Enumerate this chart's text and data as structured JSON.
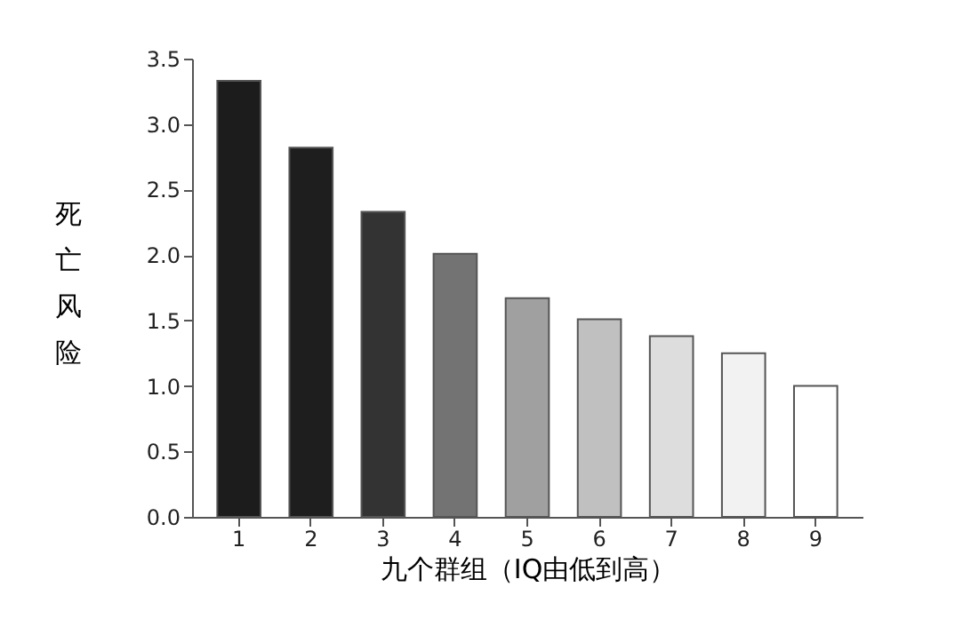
{
  "chart_data": {
    "type": "bar",
    "xlabel": "九个群组（IQ由低到高）",
    "ylabel": "死亡风险",
    "categories": [
      "1",
      "2",
      "3",
      "4",
      "5",
      "6",
      "7",
      "8",
      "9"
    ],
    "values": [
      3.33,
      2.82,
      2.33,
      2.01,
      1.67,
      1.51,
      1.38,
      1.25,
      1.0
    ],
    "colors": [
      "#1c1c1c",
      "#1e1e1e",
      "#333333",
      "#737373",
      "#a0a0a0",
      "#c0c0c0",
      "#dddddd",
      "#f2f2f2",
      "#ffffff"
    ],
    "ylim": [
      0,
      3.5
    ],
    "yticks": [
      {
        "value": 0,
        "label": "0.0"
      },
      0.5,
      {
        "value": 1,
        "label": "1.0"
      },
      1.5,
      {
        "value": 2,
        "label": "2.0"
      },
      2.5,
      {
        "value": 3,
        "label": "3.0"
      },
      3.5
    ],
    "grid": false
  }
}
